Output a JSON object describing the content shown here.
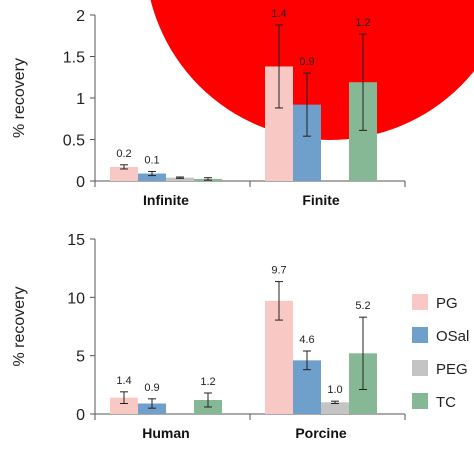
{
  "decoration": {
    "color": "#ff0000"
  },
  "legend": {
    "placement": "right",
    "entries": [
      {
        "name": "PG",
        "color": "#f8c9c4"
      },
      {
        "name": "OSal",
        "color": "#6f9fcb"
      },
      {
        "name": "PEG",
        "color": "#c4c4c4"
      },
      {
        "name": "TC",
        "color": "#86b896"
      }
    ]
  },
  "chart_data": [
    {
      "type": "bar",
      "title": "",
      "xlabel": "",
      "ylabel": "% recovery",
      "ylim": [
        0,
        2
      ],
      "yticks": [
        0,
        0.5,
        1,
        1.5,
        2
      ],
      "ytick_labels": [
        "0",
        "0.5",
        "1",
        "1.5",
        "2"
      ],
      "grid": false,
      "categories": [
        "Infinite",
        "Finite"
      ],
      "series": [
        {
          "name": "PG",
          "values": [
            0.17,
            1.38
          ],
          "errors": [
            0.025,
            0.5
          ],
          "labels": [
            "0.2",
            "1.4"
          ]
        },
        {
          "name": "OSal",
          "values": [
            0.09,
            0.92
          ],
          "errors": [
            0.025,
            0.38
          ],
          "labels": [
            "0.1",
            "0.9"
          ]
        },
        {
          "name": "PEG",
          "values": [
            0.04,
            null
          ],
          "errors": [
            0.008,
            null
          ],
          "labels": [
            "",
            ""
          ]
        },
        {
          "name": "TC",
          "values": [
            0.025,
            1.19
          ],
          "errors": [
            0.015,
            0.58
          ],
          "labels": [
            "",
            "1.2"
          ]
        }
      ]
    },
    {
      "type": "bar",
      "title": "",
      "xlabel": "",
      "ylabel": "% recovery",
      "ylim": [
        0,
        15
      ],
      "yticks": [
        0,
        5,
        10,
        15
      ],
      "ytick_labels": [
        "0",
        "5",
        "10",
        "15"
      ],
      "grid": false,
      "categories": [
        "Human",
        "Porcine"
      ],
      "series": [
        {
          "name": "PG",
          "values": [
            1.4,
            9.7
          ],
          "errors": [
            0.5,
            1.65
          ],
          "labels": [
            "1.4",
            "9.7"
          ]
        },
        {
          "name": "OSal",
          "values": [
            0.9,
            4.6
          ],
          "errors": [
            0.4,
            0.8
          ],
          "labels": [
            "0.9",
            "4.6"
          ]
        },
        {
          "name": "PEG",
          "values": [
            null,
            1.0
          ],
          "errors": [
            null,
            0.1
          ],
          "labels": [
            "",
            "1.0"
          ]
        },
        {
          "name": "TC",
          "values": [
            1.2,
            5.2
          ],
          "errors": [
            0.6,
            3.1
          ],
          "labels": [
            "1.2",
            "5.2"
          ]
        }
      ]
    }
  ]
}
